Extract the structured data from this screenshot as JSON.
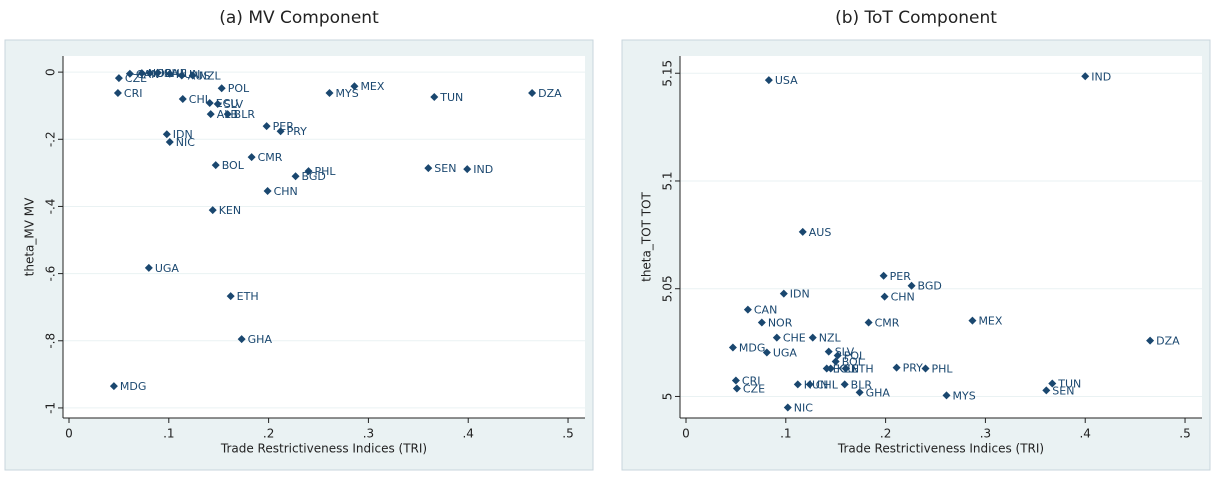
{
  "chart_data": [
    {
      "type": "scatter",
      "title": "(a) MV Component",
      "xlabel": "Trade Restrictiveness Indices (TRI)",
      "ylabel": "theta_MV MV",
      "color": "#1a476f",
      "grid": true,
      "xlim": [
        -0.006,
        0.517
      ],
      "ylim": [
        -1.03,
        0.048
      ],
      "xticks": [
        0,
        {
          "value": 0.1,
          "label": ".1"
        },
        {
          "value": 0.2,
          "label": ".2"
        },
        {
          "value": 0.3,
          "label": ".3"
        },
        {
          "value": 0.4,
          "label": ".4"
        },
        {
          "value": 0.5,
          "label": ".5"
        }
      ],
      "yticks": [
        0,
        {
          "value": -0.2,
          "label": "-.2"
        },
        {
          "value": -0.4,
          "label": "-.4"
        },
        {
          "value": -0.6,
          "label": "-.6"
        },
        {
          "value": -0.8,
          "label": "-.8"
        },
        {
          "value": -1,
          "label": "-1"
        }
      ],
      "labels": [
        "CZE",
        "CRI",
        "CAN",
        "NOR",
        "USA",
        "CHE",
        "HUN",
        "AUS",
        "NZL",
        "POL",
        "CHL",
        "ECU",
        "SLV",
        "BLR",
        "ALB",
        "IDN",
        "NIC",
        "PER",
        "PRY",
        "BOL",
        "CMR",
        "BGD",
        "PHL",
        "CHN",
        "KEN",
        "UGA",
        "ETH",
        "GHA",
        "MDG",
        "MYS",
        "MEX",
        "TUN",
        "DZA",
        "SEN",
        "IND"
      ],
      "x": [
        0.05,
        0.049,
        0.061,
        0.073,
        0.081,
        0.089,
        0.101,
        0.113,
        0.124,
        0.153,
        0.114,
        0.141,
        0.149,
        0.159,
        0.142,
        0.098,
        0.101,
        0.198,
        0.212,
        0.147,
        0.183,
        0.227,
        0.24,
        0.199,
        0.144,
        0.08,
        0.162,
        0.173,
        0.045,
        0.261,
        0.286,
        0.366,
        0.464,
        0.36,
        0.399
      ],
      "values": [
        -0.018,
        -0.062,
        -0.005,
        -0.003,
        -0.003,
        -0.002,
        -0.005,
        -0.01,
        -0.01,
        -0.048,
        -0.08,
        -0.092,
        -0.095,
        -0.125,
        -0.125,
        -0.185,
        -0.208,
        -0.161,
        -0.176,
        -0.277,
        -0.253,
        -0.31,
        -0.295,
        -0.354,
        -0.411,
        -0.583,
        -0.667,
        -0.795,
        -0.935,
        -0.062,
        -0.042,
        -0.074,
        -0.062,
        -0.286,
        -0.289
      ]
    },
    {
      "type": "scatter",
      "title": "(b) ToT Component",
      "xlabel": "Trade Restrictiveness Indices (TRI)",
      "ylabel": "theta_TOT TOT",
      "color": "#1a476f",
      "grid": true,
      "xlim": [
        -0.006,
        0.517
      ],
      "ylim": [
        4.99,
        5.158
      ],
      "xticks": [
        0,
        {
          "value": 0.1,
          "label": ".1"
        },
        {
          "value": 0.2,
          "label": ".2"
        },
        {
          "value": 0.3,
          "label": ".3"
        },
        {
          "value": 0.4,
          "label": ".4"
        },
        {
          "value": 0.5,
          "label": ".5"
        }
      ],
      "yticks": [
        5,
        5.05,
        5.1,
        5.15
      ],
      "labels": [
        "USA",
        "IND",
        "AUS",
        "PER",
        "BGD",
        "IDN",
        "CHN",
        "CAN",
        "NOR",
        "CMR",
        "MEX",
        "CHE",
        "NZL",
        "DZA",
        "MDG",
        "UGA",
        "SLV",
        "POL",
        "BOL",
        "KEN",
        "ECU",
        "ETH",
        "PRY",
        "PHL",
        "CRI",
        "CZE",
        "HUN",
        "CHL",
        "BLR",
        "GHA",
        "MYS",
        "NIC",
        "TUN",
        "SEN"
      ],
      "x": [
        0.083,
        0.4,
        0.117,
        0.198,
        0.226,
        0.098,
        0.199,
        0.062,
        0.076,
        0.183,
        0.287,
        0.091,
        0.127,
        0.465,
        0.047,
        0.081,
        0.143,
        0.152,
        0.15,
        0.145,
        0.141,
        0.16,
        0.211,
        0.24,
        0.05,
        0.051,
        0.112,
        0.124,
        0.159,
        0.174,
        0.261,
        0.102,
        0.367,
        0.361
      ],
      "values": [
        5.1468,
        5.1486,
        5.0764,
        5.056,
        5.0514,
        5.0477,
        5.0463,
        5.0403,
        5.0343,
        5.0343,
        5.0352,
        5.0273,
        5.0273,
        5.0259,
        5.0227,
        5.0204,
        5.0208,
        5.019,
        5.0162,
        5.013,
        5.013,
        5.013,
        5.0134,
        5.013,
        5.0074,
        5.0037,
        5.0056,
        5.0056,
        5.0056,
        5.0019,
        5.0005,
        4.9949,
        5.006,
        5.0028
      ]
    }
  ]
}
